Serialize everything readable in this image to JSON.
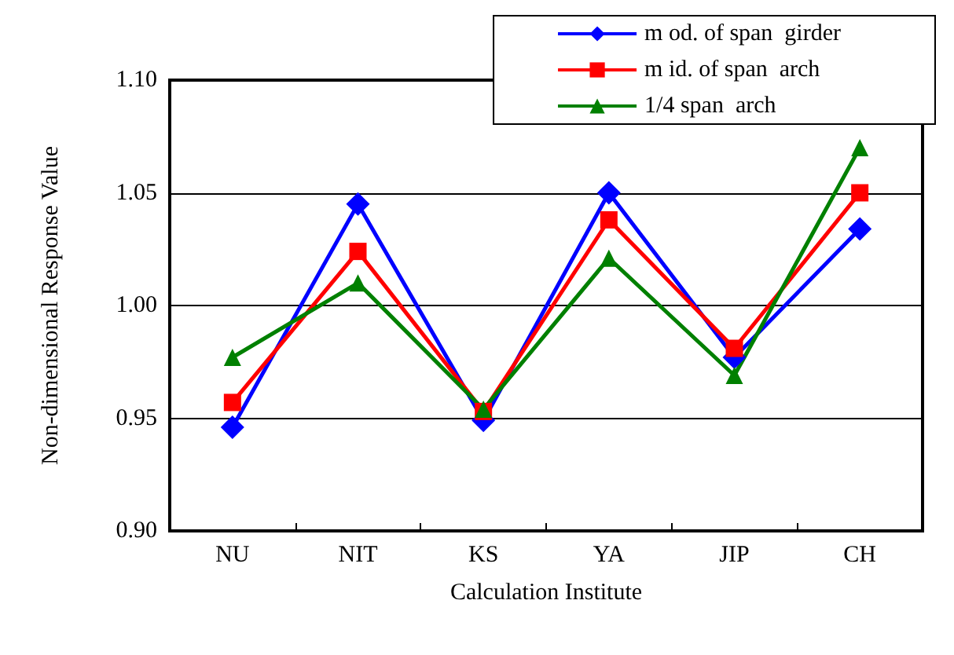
{
  "chart_data": {
    "type": "line",
    "xlabel": "Calculation Institute",
    "ylabel": "Non-dimensional Response Value",
    "categories": [
      "NU",
      "NIT",
      "KS",
      "YA",
      "JIP",
      "CH"
    ],
    "series": [
      {
        "name": "m od. of span  girder",
        "color": "#0000ff",
        "marker": "diamond",
        "values": [
          0.946,
          1.045,
          0.949,
          1.05,
          0.977,
          1.034
        ]
      },
      {
        "name": "m id. of span  arch",
        "color": "#ff0000",
        "marker": "square",
        "values": [
          0.957,
          1.024,
          0.953,
          1.038,
          0.981,
          1.05
        ]
      },
      {
        "name": "1/4 span  arch",
        "color": "#008000",
        "marker": "triangle",
        "values": [
          0.977,
          1.01,
          0.954,
          1.021,
          0.969,
          1.07
        ]
      }
    ],
    "ylim": [
      0.9,
      1.1
    ],
    "yticks": [
      {
        "value": 0.9,
        "label": "0.90"
      },
      0.95,
      {
        "value": 1.0,
        "label": "1.00"
      },
      1.05,
      {
        "value": 1.1,
        "label": "1.10"
      }
    ],
    "grid": "y",
    "legend": "top right",
    "line_style": "solid"
  }
}
